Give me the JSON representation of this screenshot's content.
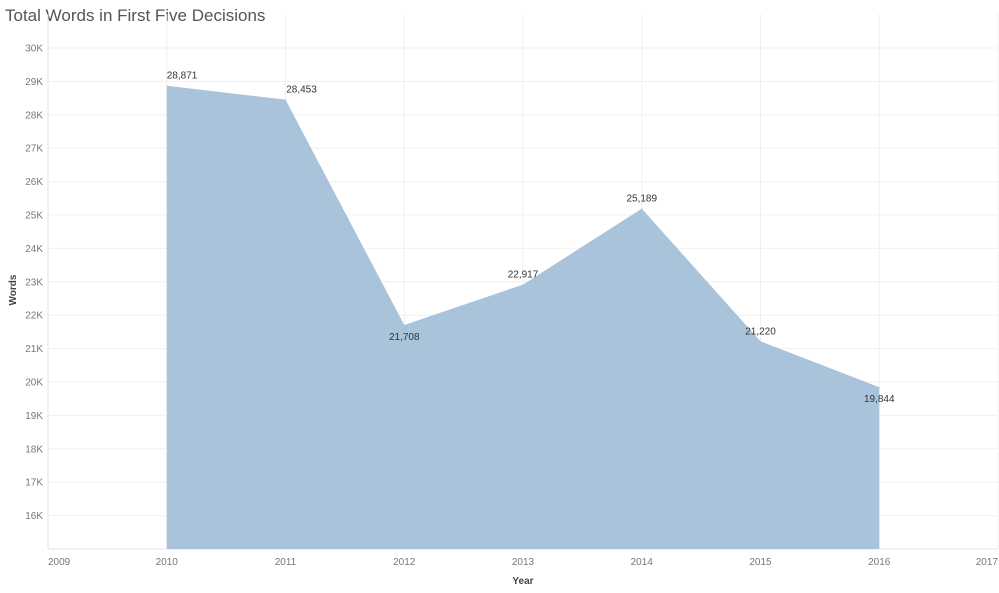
{
  "chart_data": {
    "type": "area",
    "title": "Total Words in First Five Decisions",
    "xlabel": "Year",
    "ylabel": "Words",
    "x": [
      2010,
      2011,
      2012,
      2013,
      2014,
      2015,
      2016
    ],
    "values": [
      28871,
      28453,
      21708,
      22917,
      25189,
      21220,
      19844
    ],
    "data_labels": [
      "28,871",
      "28,453",
      "21,708",
      "22,917",
      "25,189",
      "21,220",
      "19,844"
    ],
    "xlim": [
      2009,
      2017
    ],
    "ylim": [
      15000,
      30000
    ],
    "x_ticks": [
      "2009",
      "2010",
      "2011",
      "2012",
      "2013",
      "2014",
      "2015",
      "2016",
      "2017"
    ],
    "y_ticks": [
      "16K",
      "17K",
      "18K",
      "19K",
      "20K",
      "21K",
      "22K",
      "23K",
      "24K",
      "25K",
      "26K",
      "27K",
      "28K",
      "29K",
      "30K"
    ],
    "grid": true,
    "fill_color": "#a9c3db"
  }
}
